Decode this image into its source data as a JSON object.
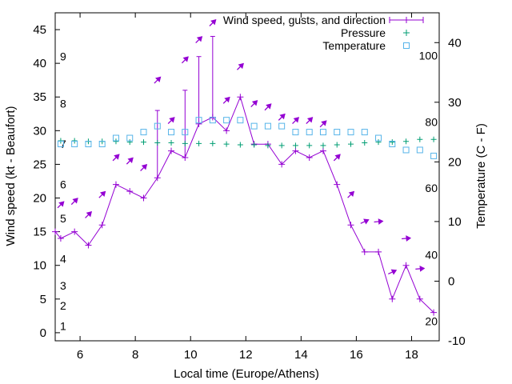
{
  "chart_data": {
    "type": "line",
    "xlabel": "Local time (Europe/Athens)",
    "ylabel": "Wind speed (kt - Beaufort)",
    "y2label": "Temperature (C - F)",
    "xlim": [
      5.1,
      19.0
    ],
    "ylim": [
      -1.2,
      47.5
    ],
    "y2lim": [
      -10,
      45
    ],
    "x_ticks": [
      6,
      8,
      10,
      12,
      14,
      16,
      18
    ],
    "y_ticks": [
      0,
      5,
      10,
      15,
      20,
      25,
      30,
      35,
      40,
      45
    ],
    "y2_ticks": [
      -10,
      0,
      10,
      20,
      30,
      40
    ],
    "beaufort_labels": [
      {
        "label": "1",
        "y": 1.0
      },
      {
        "label": "2",
        "y": 4.0
      },
      {
        "label": "3",
        "y": 7.0
      },
      {
        "label": "4",
        "y": 11.0
      },
      {
        "label": "5",
        "y": 17.0
      },
      {
        "label": "6",
        "y": 22.0
      },
      {
        "label": "7",
        "y": 28.0
      },
      {
        "label": "8",
        "y": 34.0
      },
      {
        "label": "9",
        "y": 41.0
      }
    ],
    "fahrenheit_labels": [
      {
        "label": "20",
        "y2": -6.7
      },
      {
        "label": "40",
        "y2": 4.4
      },
      {
        "label": "60",
        "y2": 15.6
      },
      {
        "label": "80",
        "y2": 26.7
      },
      {
        "label": "100",
        "y2": 37.8
      }
    ],
    "legend": [
      "Wind speed, gusts, and direction",
      "Pressure",
      "Temperature"
    ],
    "legend_position": "top-right",
    "colors": {
      "wind": "#9400d3",
      "pressure": "#009e73",
      "temperature": "#56b4e9"
    },
    "wind": {
      "x": [
        5.1,
        5.3,
        5.8,
        6.3,
        6.8,
        7.3,
        7.8,
        8.3,
        8.8,
        9.3,
        9.8,
        10.3,
        10.8,
        11.3,
        11.8,
        12.3,
        12.8,
        13.3,
        13.8,
        14.3,
        14.8,
        15.3,
        15.8,
        16.3,
        16.8,
        17.3,
        17.8,
        18.3,
        18.8
      ],
      "speed": [
        15,
        14,
        15,
        13,
        16,
        22,
        21,
        20,
        23,
        27,
        26,
        31,
        32,
        30,
        35,
        28,
        28,
        25,
        27,
        26,
        27,
        22,
        16,
        12,
        12,
        5,
        10,
        5,
        3
      ],
      "gust": [
        null,
        null,
        null,
        null,
        null,
        null,
        null,
        null,
        33,
        null,
        36,
        41,
        44,
        null,
        null,
        null,
        null,
        null,
        null,
        null,
        null,
        null,
        null,
        null,
        null,
        null,
        null,
        null,
        null
      ],
      "direction_deg": [
        225,
        225,
        225,
        225,
        225,
        225,
        225,
        225,
        225,
        225,
        225,
        225,
        225,
        225,
        225,
        225,
        225,
        225,
        225,
        225,
        225,
        225,
        225,
        245,
        265,
        245,
        265,
        265,
        275
      ],
      "arrow_y": [
        null,
        19.0,
        19.5,
        17.5,
        20.5,
        26.0,
        25.5,
        24.5,
        37.5,
        31.5,
        40.5,
        43.5,
        46.0,
        34.5,
        39.5,
        34.0,
        33.5,
        32.0,
        31.5,
        31.5,
        31.0,
        26.0,
        20.5,
        16.5,
        16.5,
        9.0,
        14.0,
        9.5,
        null
      ]
    },
    "pressure": {
      "x": [
        5.3,
        5.8,
        6.3,
        6.8,
        7.3,
        7.8,
        8.3,
        8.8,
        9.3,
        9.8,
        10.3,
        10.8,
        11.3,
        11.8,
        12.3,
        12.8,
        13.3,
        13.8,
        14.3,
        14.8,
        15.3,
        15.8,
        16.3,
        16.8,
        17.3,
        17.8,
        18.3,
        18.8
      ],
      "y": [
        28.5,
        28.5,
        28.4,
        28.4,
        28.4,
        28.3,
        28.3,
        28.2,
        28.2,
        28.1,
        28.1,
        28.1,
        28.0,
        27.9,
        27.9,
        27.8,
        27.8,
        27.8,
        27.8,
        27.8,
        27.9,
        28.0,
        28.2,
        28.3,
        28.3,
        28.4,
        28.7,
        28.7
      ]
    },
    "temperature": {
      "x": [
        5.3,
        5.8,
        6.3,
        6.8,
        7.3,
        7.8,
        8.3,
        8.8,
        9.3,
        9.8,
        10.3,
        10.8,
        11.3,
        11.8,
        12.3,
        12.8,
        13.3,
        13.8,
        14.3,
        14.8,
        15.3,
        15.8,
        16.3,
        16.8,
        17.3,
        17.8,
        18.3,
        18.8
      ],
      "y": [
        23,
        23,
        23,
        23,
        24,
        24,
        25,
        26,
        25,
        25,
        27,
        27,
        27,
        27,
        26,
        26,
        26,
        25,
        25,
        25,
        25,
        25,
        25,
        24,
        23,
        22,
        22,
        21
      ]
    }
  }
}
